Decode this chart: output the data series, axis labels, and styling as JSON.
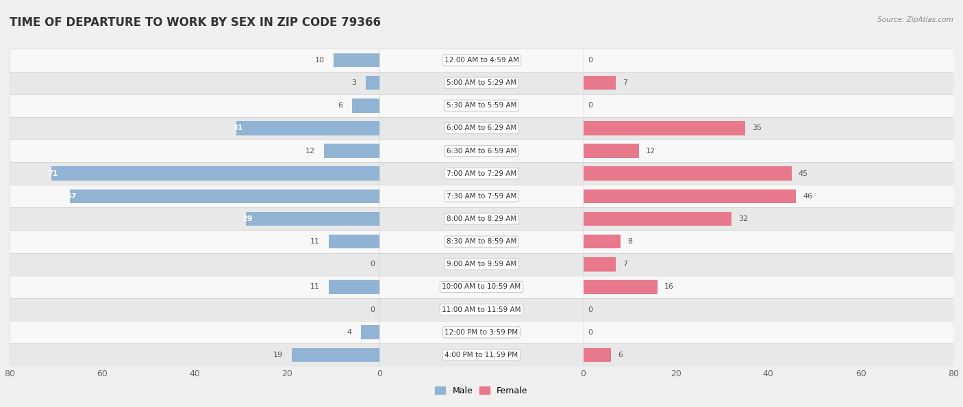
{
  "title": "TIME OF DEPARTURE TO WORK BY SEX IN ZIP CODE 79366",
  "source": "Source: ZipAtlas.com",
  "categories": [
    "12:00 AM to 4:59 AM",
    "5:00 AM to 5:29 AM",
    "5:30 AM to 5:59 AM",
    "6:00 AM to 6:29 AM",
    "6:30 AM to 6:59 AM",
    "7:00 AM to 7:29 AM",
    "7:30 AM to 7:59 AM",
    "8:00 AM to 8:29 AM",
    "8:30 AM to 8:59 AM",
    "9:00 AM to 9:59 AM",
    "10:00 AM to 10:59 AM",
    "11:00 AM to 11:59 AM",
    "12:00 PM to 3:59 PM",
    "4:00 PM to 11:59 PM"
  ],
  "male": [
    10,
    3,
    6,
    31,
    12,
    71,
    67,
    29,
    11,
    0,
    11,
    0,
    4,
    19
  ],
  "female": [
    0,
    7,
    0,
    35,
    12,
    45,
    46,
    32,
    8,
    7,
    16,
    0,
    0,
    6
  ],
  "male_color": "#92b4d4",
  "female_color": "#e8798c",
  "background_color": "#f0f0f0",
  "row_light": "#f8f8f8",
  "row_dark": "#e8e8e8",
  "axis_limit": 80,
  "bar_height": 0.62,
  "title_fontsize": 12,
  "label_fontsize": 8,
  "cat_fontsize": 7.5,
  "tick_fontsize": 9,
  "value_color": "#555555",
  "white_label_color": "#ffffff"
}
